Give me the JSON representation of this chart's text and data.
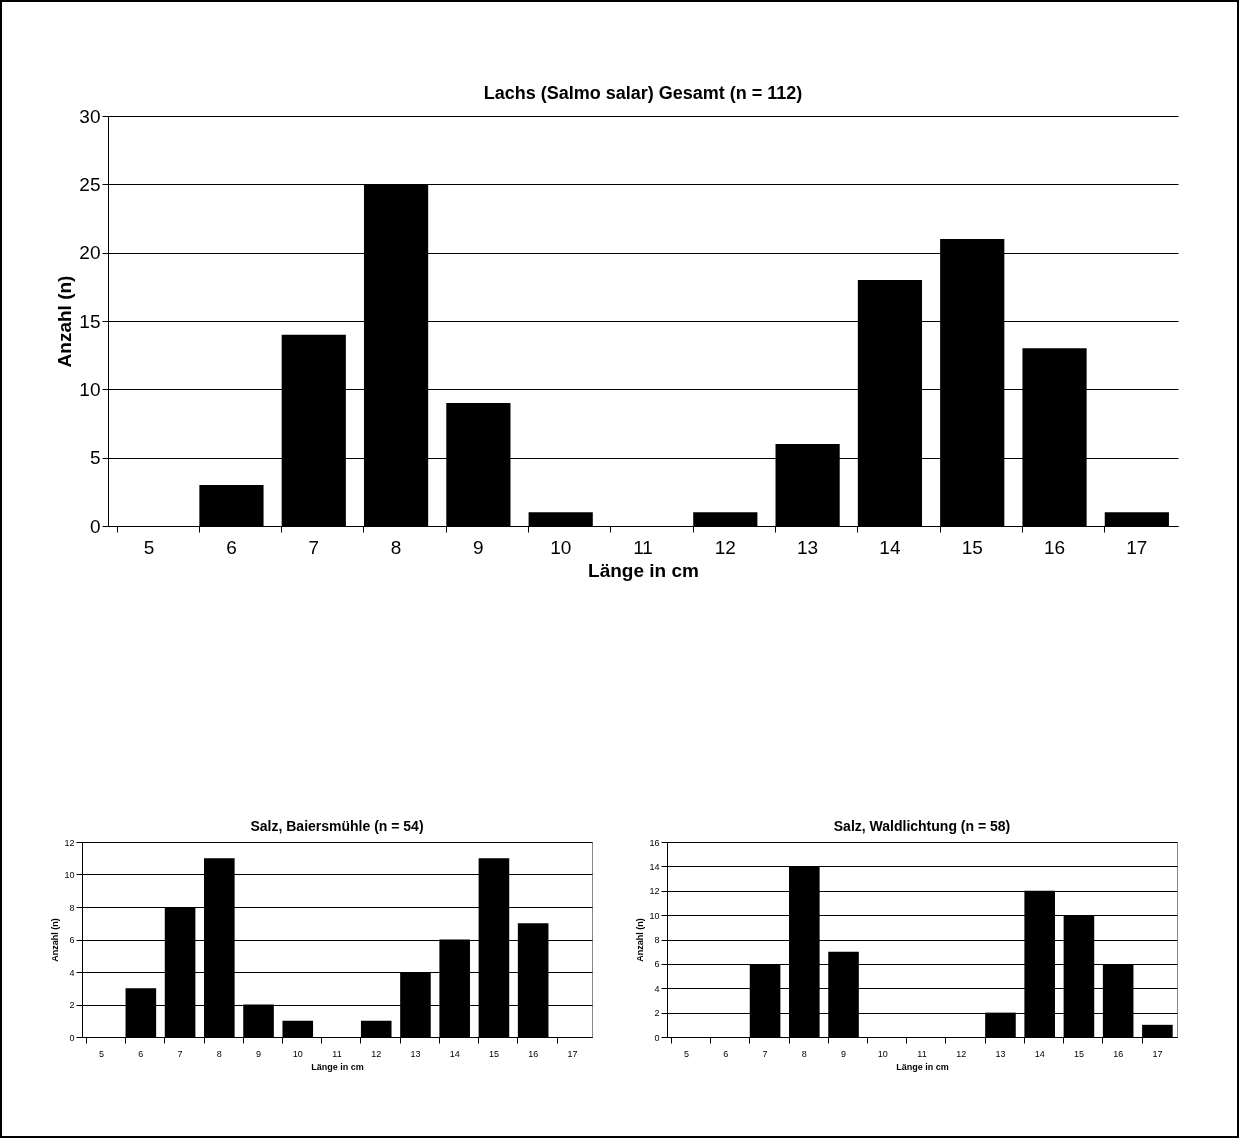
{
  "chart_data": [
    {
      "type": "bar",
      "title": "Lachs (Salmo salar) Gesamt (n = 112)",
      "xlabel": "Länge in cm",
      "ylabel": "Anzahl (n)",
      "categories": [
        "5",
        "6",
        "7",
        "8",
        "9",
        "10",
        "11",
        "12",
        "13",
        "14",
        "15",
        "16",
        "17"
      ],
      "values": [
        0,
        3,
        14,
        25,
        9,
        1,
        0,
        1,
        6,
        18,
        21,
        13,
        1
      ],
      "color": "#000000",
      "ylim": [
        0,
        30
      ],
      "yticks": [
        0,
        5,
        10,
        15,
        20,
        25,
        30
      ],
      "grid": "y"
    },
    {
      "type": "bar",
      "title": "Salz, Baiersmühle (n = 54)",
      "xlabel": "Länge in cm",
      "ylabel": "Anzahl (n)",
      "categories": [
        "5",
        "6",
        "7",
        "8",
        "9",
        "10",
        "11",
        "12",
        "13",
        "14",
        "15",
        "16",
        "17"
      ],
      "values": [
        0,
        3,
        8,
        11,
        2,
        1,
        0,
        1,
        4,
        6,
        11,
        7,
        0
      ],
      "color": "#000000",
      "ylim": [
        0,
        12
      ],
      "yticks": [
        0,
        2,
        4,
        6,
        8,
        10,
        12
      ],
      "grid": "y"
    },
    {
      "type": "bar",
      "title": "Salz, Waldlichtung (n = 58)",
      "xlabel": "Länge in cm",
      "ylabel": "Anzahl (n)",
      "categories": [
        "5",
        "6",
        "7",
        "8",
        "9",
        "10",
        "11",
        "12",
        "13",
        "14",
        "15",
        "16",
        "17"
      ],
      "values": [
        0,
        0,
        6,
        14,
        7,
        0,
        0,
        0,
        2,
        12,
        10,
        6,
        1
      ],
      "color": "#000000",
      "ylim": [
        0,
        16
      ],
      "yticks": [
        0,
        2,
        4,
        6,
        8,
        10,
        12,
        14,
        16
      ],
      "grid": "y"
    }
  ]
}
